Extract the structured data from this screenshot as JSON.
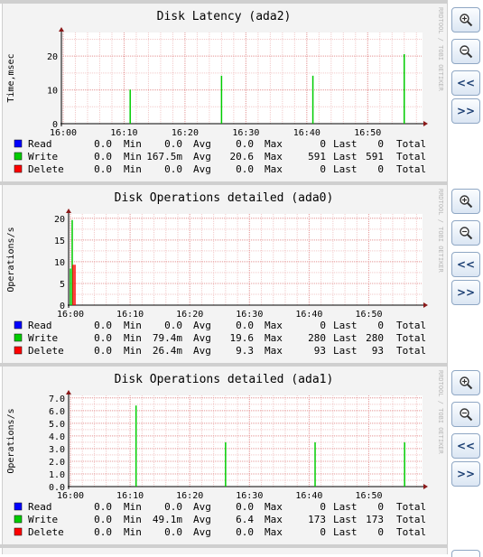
{
  "buttons": {
    "zoom_in": "zoom-in",
    "zoom_out": "zoom-out",
    "back": "<<",
    "forward": ">>"
  },
  "watermark": "RRDTOOL / TOBI OETIKER",
  "charts": [
    {
      "title": "Disk Latency (ada2)",
      "ylabel": "Time,msec",
      "chart_data": {
        "type": "bar",
        "title": "Disk Latency (ada2)",
        "xlabel": "",
        "ylabel": "Time,msec",
        "x_ticks": [
          "16:00",
          "16:10",
          "16:20",
          "16:30",
          "16:40",
          "16:50"
        ],
        "y_ticks": [
          "0",
          "10",
          "20"
        ],
        "ylim": [
          0,
          27
        ],
        "series": [
          {
            "name": "Read",
            "color": "#0000ff",
            "points": []
          },
          {
            "name": "Write",
            "color": "#00cc00",
            "points": [
              [
                "16:11",
                10.1
              ],
              [
                "16:26",
                14.2
              ],
              [
                "16:41",
                14.2
              ],
              [
                "16:56",
                20.6
              ]
            ]
          },
          {
            "name": "Delete",
            "color": "#ff0000",
            "points": []
          }
        ],
        "grid": true
      },
      "legend": [
        {
          "name": "Read",
          "color": "#0000ff",
          "min": "0.0",
          "avg": "0.0",
          "max": "0.0",
          "last": "0"
        },
        {
          "name": "Write",
          "color": "#00cc00",
          "min": "0.0",
          "avg": "167.5m",
          "max": "20.6",
          "last": "591"
        },
        {
          "name": "Delete",
          "color": "#ff0000",
          "min": "0.0",
          "avg": "0.0",
          "max": "0.0",
          "last": "0"
        }
      ]
    },
    {
      "title": "Disk Operations detailed (ada0)",
      "ylabel": "Operations/s",
      "chart_data": {
        "type": "bar",
        "title": "Disk Operations detailed (ada0)",
        "xlabel": "",
        "ylabel": "Operations/s",
        "x_ticks": [
          "16:00",
          "16:10",
          "16:20",
          "16:30",
          "16:40",
          "16:50"
        ],
        "y_ticks": [
          "0",
          "5",
          "10",
          "15",
          "20"
        ],
        "ylim": [
          0,
          21
        ],
        "series": [
          {
            "name": "Read",
            "color": "#0000ff",
            "points": []
          },
          {
            "name": "Write",
            "color": "#00cc00",
            "points": [
              [
                "16:00",
                8.4
              ],
              [
                "16:00",
                19.6
              ]
            ]
          },
          {
            "name": "Delete",
            "color": "#ff0000",
            "points": [
              [
                "16:00",
                9.3
              ],
              [
                "16:00",
                9.3
              ]
            ]
          }
        ],
        "grid": true
      },
      "legend": [
        {
          "name": "Read",
          "color": "#0000ff",
          "min": "0.0",
          "avg": "0.0",
          "max": "0.0",
          "last": "0"
        },
        {
          "name": "Write",
          "color": "#00cc00",
          "min": "0.0",
          "avg": "79.4m",
          "max": "19.6",
          "last": "280"
        },
        {
          "name": "Delete",
          "color": "#ff0000",
          "min": "0.0",
          "avg": "26.4m",
          "max": "9.3",
          "last": "93"
        }
      ]
    },
    {
      "title": "Disk Operations detailed (ada1)",
      "ylabel": "Operations/s",
      "chart_data": {
        "type": "bar",
        "title": "Disk Operations detailed (ada1)",
        "xlabel": "",
        "ylabel": "Operations/s",
        "x_ticks": [
          "16:00",
          "16:10",
          "16:20",
          "16:30",
          "16:40",
          "16:50"
        ],
        "y_ticks": [
          "0.0",
          "1.0",
          "2.0",
          "3.0",
          "4.0",
          "5.0",
          "6.0",
          "7.0"
        ],
        "ylim": [
          0,
          7.2
        ],
        "series": [
          {
            "name": "Read",
            "color": "#0000ff",
            "points": []
          },
          {
            "name": "Write",
            "color": "#00cc00",
            "points": [
              [
                "16:11",
                6.4
              ],
              [
                "16:26",
                3.5
              ],
              [
                "16:41",
                3.5
              ],
              [
                "16:56",
                3.5
              ]
            ]
          },
          {
            "name": "Delete",
            "color": "#ff0000",
            "points": []
          }
        ],
        "grid": true
      },
      "legend": [
        {
          "name": "Read",
          "color": "#0000ff",
          "min": "0.0",
          "avg": "0.0",
          "max": "0.0",
          "last": "0"
        },
        {
          "name": "Write",
          "color": "#00cc00",
          "min": "0.0",
          "avg": "49.1m",
          "max": "6.4",
          "last": "173"
        },
        {
          "name": "Delete",
          "color": "#ff0000",
          "min": "0.0",
          "avg": "0.0",
          "max": "0.0",
          "last": "0"
        }
      ]
    }
  ],
  "labels": {
    "min": "Min",
    "avg": "Avg",
    "max": "Max",
    "last": "Last",
    "total": "Total"
  }
}
